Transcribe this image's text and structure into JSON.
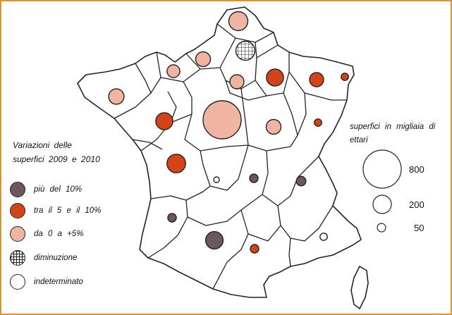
{
  "legend": {
    "title_line1": "Variazioni delle",
    "title_line2": "superfici 2009 e 2010",
    "items": [
      {
        "key": "piu",
        "label": "più del 10%",
        "fill": "#6e5660"
      },
      {
        "key": "tra",
        "label": "tra il 5 e il 10%",
        "fill": "#d4441a"
      },
      {
        "key": "da",
        "label": "da 0 a +5%",
        "fill": "#f0b4a2"
      },
      {
        "key": "dim",
        "label": "diminuzione",
        "fill": "crosshatch"
      },
      {
        "key": "ind",
        "label": "indeterminato",
        "fill": "#ffffff"
      }
    ]
  },
  "size_legend": {
    "title_line1": "superfici in migliaia di",
    "title_line2": "ettari",
    "values": [
      "800",
      "200",
      "50"
    ]
  },
  "colors": {
    "border": "#d9962f",
    "dark": "#6e5660",
    "orange": "#d4441a",
    "pink": "#f0b4a2",
    "outline": "#222222"
  },
  "regions_bubbles": [
    {
      "category": "da",
      "size": 200
    },
    {
      "category": "dim",
      "size": 200
    },
    {
      "category": "da",
      "size": 120
    },
    {
      "category": "da",
      "size": 90
    },
    {
      "category": "da",
      "size": 110
    },
    {
      "category": "da",
      "size": 130
    },
    {
      "category": "tra",
      "size": 160
    },
    {
      "category": "tra",
      "size": 110
    },
    {
      "category": "tra",
      "size": 30
    },
    {
      "category": "tra",
      "size": 160
    },
    {
      "category": "da",
      "size": 800
    },
    {
      "category": "da",
      "size": 120
    },
    {
      "category": "tra",
      "size": 30
    },
    {
      "category": "tra",
      "size": 190
    },
    {
      "category": "ind",
      "size": 10
    },
    {
      "category": "piu",
      "size": 40
    },
    {
      "category": "piu",
      "size": 50
    },
    {
      "category": "piu",
      "size": 40
    },
    {
      "category": "piu",
      "size": 170
    },
    {
      "category": "tra",
      "size": 40
    },
    {
      "category": "ind",
      "size": 30
    }
  ]
}
